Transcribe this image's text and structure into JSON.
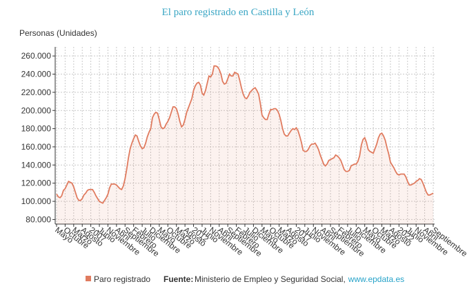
{
  "chart_data": {
    "type": "area",
    "title": "El paro registrado en Castilla y León",
    "y_label": "Personas (Unidades)",
    "categories": [
      "Mayo",
      null,
      null,
      null,
      null,
      "Octubre",
      null,
      null,
      null,
      null,
      "Marzo",
      null,
      null,
      null,
      null,
      "Agosto",
      null,
      null,
      null,
      null,
      "2007",
      null,
      null,
      null,
      null,
      "Junio",
      null,
      null,
      null,
      null,
      "Noviembre",
      null,
      null,
      null,
      null,
      "Abril",
      null,
      null,
      null,
      null,
      "Septiembre",
      null,
      null,
      null,
      null,
      "Febrero",
      null,
      null,
      null,
      null,
      "Julio",
      null,
      null,
      null,
      null,
      "Diciembre",
      null,
      null,
      null,
      null,
      "Mayo",
      null,
      null,
      null,
      null,
      "Octubre",
      null,
      null,
      null,
      null,
      "Marzo",
      null,
      null,
      null,
      null,
      "Agosto",
      null,
      null,
      null,
      null,
      "2012",
      null,
      null,
      null,
      null,
      "Junio",
      null,
      null,
      null,
      null,
      "Noviembre",
      null,
      null,
      null,
      null,
      "Abril",
      null,
      null,
      null,
      null,
      "Septiembre",
      null,
      null,
      null,
      null,
      "Febrero",
      null,
      null,
      null,
      null,
      "Julio",
      null,
      null,
      null,
      null,
      "Diciembre",
      null,
      null,
      null,
      null,
      "Mayo",
      null,
      null,
      null,
      null,
      "Octubre",
      null,
      null,
      null,
      null,
      "Marzo",
      null,
      null,
      null,
      null,
      "Agosto",
      null,
      null,
      null,
      null,
      "2017",
      null,
      null,
      null,
      null,
      "Junio",
      null,
      null,
      null,
      null,
      "Noviembre",
      null,
      null,
      null,
      null,
      "Abril",
      null,
      null,
      null,
      null,
      "Septiembre",
      null,
      null,
      null,
      null,
      "Febrero",
      null,
      null,
      null,
      null,
      "Julio",
      null,
      null,
      null,
      null,
      "Diciembre",
      null,
      null,
      null,
      null,
      "Mayo",
      null,
      null,
      null,
      null,
      "Octubre",
      null,
      null,
      null,
      null,
      "Marzo",
      null,
      null,
      null,
      null,
      "Agosto",
      null,
      null,
      null,
      null,
      "2022",
      null,
      null,
      null,
      null,
      "Junio",
      null,
      null,
      null,
      null,
      "Noviembre",
      null,
      null,
      null,
      null,
      "Abril",
      null,
      null,
      null,
      null,
      "Septiembre"
    ],
    "series": [
      {
        "name": "Paro registrado",
        "color": "#e07b5f",
        "values": [
          108000,
          105000,
          104000,
          106000,
          112000,
          114000,
          118000,
          122000,
          121000,
          120000,
          116000,
          110000,
          104000,
          101000,
          101000,
          103000,
          107000,
          109000,
          112000,
          113000,
          113000,
          113000,
          110000,
          106000,
          103000,
          100000,
          99000,
          98000,
          101000,
          104000,
          108000,
          115000,
          119000,
          119000,
          119000,
          118000,
          116000,
          114000,
          113000,
          117000,
          125000,
          136000,
          148000,
          158000,
          164000,
          169000,
          173000,
          172000,
          166000,
          161000,
          158000,
          159000,
          164000,
          171000,
          176000,
          180000,
          192000,
          196000,
          198000,
          197000,
          190000,
          182000,
          180000,
          181000,
          185000,
          188000,
          192000,
          198000,
          204000,
          204000,
          202000,
          196000,
          188000,
          182000,
          184000,
          190000,
          198000,
          203000,
          208000,
          213000,
          222000,
          227000,
          230000,
          231000,
          228000,
          219000,
          217000,
          222000,
          230000,
          238000,
          237000,
          240000,
          249000,
          249000,
          248000,
          245000,
          240000,
          232000,
          229000,
          230000,
          235000,
          240000,
          238000,
          238000,
          242000,
          241000,
          240000,
          233000,
          225000,
          218000,
          214000,
          213000,
          216000,
          220000,
          222000,
          224000,
          225000,
          222000,
          218000,
          208000,
          195000,
          192000,
          190000,
          190000,
          196000,
          201000,
          201000,
          202000,
          202000,
          200000,
          196000,
          189000,
          180000,
          174000,
          172000,
          172000,
          175000,
          178000,
          180000,
          179000,
          181000,
          178000,
          172000,
          165000,
          156000,
          155000,
          155000,
          157000,
          161000,
          163000,
          163000,
          164000,
          161000,
          157000,
          151000,
          146000,
          141000,
          139000,
          141000,
          145000,
          146000,
          147000,
          148000,
          151000,
          150000,
          148000,
          145000,
          140000,
          135000,
          133000,
          133000,
          134000,
          139000,
          140000,
          141000,
          141000,
          144000,
          150000,
          162000,
          168000,
          170000,
          165000,
          157000,
          155000,
          154000,
          153000,
          158000,
          163000,
          170000,
          174000,
          175000,
          172000,
          167000,
          159000,
          152000,
          143000,
          140000,
          137000,
          133000,
          130000,
          129000,
          130000,
          130000,
          130000,
          127000,
          122000,
          118000,
          118000,
          119000,
          120000,
          122000,
          123000,
          125000,
          124000,
          120000,
          115000,
          110000,
          107000,
          107000,
          108000,
          109000
        ]
      }
    ],
    "ylim": [
      75000,
      270000
    ],
    "yticks": [
      {
        "value": 80000,
        "label": "80.000"
      },
      {
        "value": 100000,
        "label": "100.000"
      },
      {
        "value": 120000,
        "label": "120.000"
      },
      {
        "value": 140000,
        "label": "140.000"
      },
      {
        "value": 160000,
        "label": "160.000"
      },
      {
        "value": 180000,
        "label": "180.000"
      },
      {
        "value": 200000,
        "label": "200.000"
      },
      {
        "value": 220000,
        "label": "220.000"
      },
      {
        "value": 240000,
        "label": "240.000"
      },
      {
        "value": 260000,
        "label": "260.000"
      }
    ],
    "grid": true,
    "source": {
      "label": "Fuente:",
      "text": "Ministerio de Empleo y Seguridad Social,",
      "link": "www.epdata.es"
    }
  }
}
